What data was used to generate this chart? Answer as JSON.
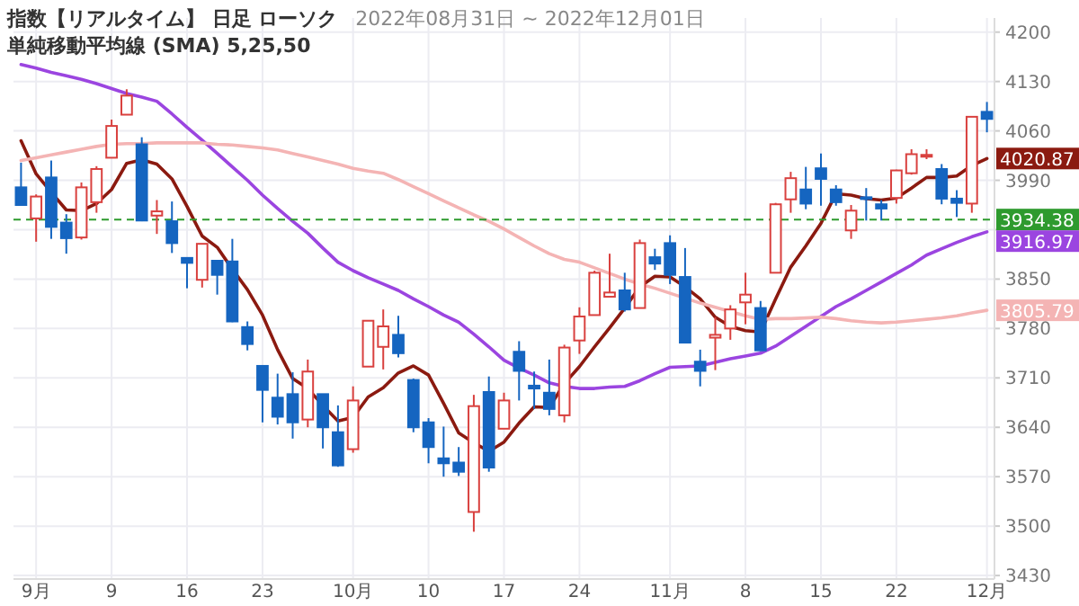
{
  "chart_data": {
    "type": "candlestick",
    "title": "指数【リアルタイム】 日足 ローソク",
    "subtitle": "単純移動平均線 (SMA) 5,25,50",
    "annotations": [
      "2022年08月31日 ~ 2022年12月01日"
    ],
    "categories": [
      null,
      "9月",
      null,
      null,
      null,
      null,
      "9",
      null,
      null,
      null,
      null,
      "16",
      null,
      null,
      null,
      null,
      "23",
      null,
      null,
      null,
      null,
      null,
      "10月",
      null,
      null,
      null,
      null,
      "10",
      null,
      null,
      null,
      null,
      "17",
      null,
      null,
      null,
      null,
      "24",
      null,
      null,
      null,
      null,
      null,
      "11月",
      null,
      null,
      null,
      null,
      "8",
      null,
      null,
      null,
      null,
      "15",
      null,
      null,
      null,
      null,
      "22",
      null,
      null,
      null,
      null,
      null,
      "12月"
    ],
    "ohlc": [
      [
        3980,
        4015,
        3954,
        3955
      ],
      [
        3936,
        3970,
        3903,
        3967
      ],
      [
        3994,
        4018,
        3907,
        3924
      ],
      [
        3930,
        3942,
        3886,
        3908
      ],
      [
        3909,
        3987,
        3906,
        3980
      ],
      [
        3959,
        4010,
        3944,
        4006
      ],
      [
        4022,
        4076,
        4022,
        4067
      ],
      [
        4083,
        4119,
        4083,
        4110
      ],
      [
        4041,
        4051,
        3932,
        3933
      ],
      [
        3940,
        3962,
        3914,
        3946
      ],
      [
        3932,
        3960,
        3887,
        3901
      ],
      [
        3880,
        3880,
        3837,
        3873
      ],
      [
        3849,
        3900,
        3838,
        3900
      ],
      [
        3876,
        3877,
        3828,
        3856
      ],
      [
        3875,
        3907,
        3789,
        3790
      ],
      [
        3782,
        3790,
        3749,
        3758
      ],
      [
        3727,
        3727,
        3647,
        3693
      ],
      [
        3682,
        3716,
        3644,
        3655
      ],
      [
        3687,
        3718,
        3624,
        3647
      ],
      [
        3651,
        3736,
        3640,
        3719
      ],
      [
        3687,
        3687,
        3610,
        3640
      ],
      [
        3633,
        3671,
        3584,
        3586
      ],
      [
        3609,
        3698,
        3604,
        3678
      ],
      [
        3726,
        3791,
        3726,
        3791
      ],
      [
        3754,
        3807,
        3722,
        3783
      ],
      [
        3771,
        3798,
        3739,
        3745
      ],
      [
        3707,
        3709,
        3633,
        3640
      ],
      [
        3647,
        3653,
        3589,
        3612
      ],
      [
        3596,
        3641,
        3570,
        3589
      ],
      [
        3590,
        3612,
        3571,
        3577
      ],
      [
        3520,
        3686,
        3492,
        3670
      ],
      [
        3690,
        3712,
        3577,
        3583
      ],
      [
        3638,
        3689,
        3638,
        3678
      ],
      [
        3747,
        3762,
        3678,
        3720
      ],
      [
        3699,
        3719,
        3666,
        3695
      ],
      [
        3689,
        3736,
        3657,
        3666
      ],
      [
        3657,
        3757,
        3647,
        3753
      ],
      [
        3763,
        3810,
        3744,
        3797
      ],
      [
        3799,
        3862,
        3799,
        3859
      ],
      [
        3825,
        3886,
        3824,
        3831
      ],
      [
        3834,
        3859,
        3804,
        3807
      ],
      [
        3809,
        3906,
        3809,
        3901
      ],
      [
        3881,
        3893,
        3863,
        3872
      ],
      [
        3901,
        3912,
        3843,
        3856
      ],
      [
        3853,
        3894,
        3759,
        3760
      ],
      [
        3733,
        3750,
        3698,
        3720
      ],
      [
        3767,
        3796,
        3721,
        3771
      ],
      [
        3780,
        3813,
        3764,
        3807
      ],
      [
        3817,
        3859,
        3786,
        3828
      ],
      [
        3809,
        3819,
        3748,
        3749
      ],
      [
        3859,
        3958,
        3859,
        3956
      ],
      [
        3963,
        4002,
        3944,
        3993
      ],
      [
        3977,
        4009,
        3949,
        3957
      ],
      [
        4007,
        4028,
        3954,
        3992
      ],
      [
        3977,
        3983,
        3954,
        3959
      ],
      [
        3919,
        3955,
        3907,
        3947
      ],
      [
        3966,
        3979,
        3933,
        3965
      ],
      [
        3956,
        3962,
        3933,
        3950
      ],
      [
        3965,
        4005,
        3957,
        4004
      ],
      [
        4000,
        4034,
        3998,
        4027
      ],
      [
        4024,
        4034,
        4020,
        4026
      ],
      [
        4006,
        4013,
        3956,
        3964
      ],
      [
        3964,
        3976,
        3938,
        3958
      ],
      [
        3957,
        4080,
        3944,
        4080
      ],
      [
        4087,
        4101,
        4058,
        4077
      ]
    ],
    "colors": [
      "#1565c0",
      "#d9413f",
      "#1565c0",
      "#1565c0",
      "#d9413f",
      "#d9413f",
      "#d9413f",
      "#d9413f",
      "#1565c0",
      "#d9413f",
      "#1565c0",
      "#1565c0",
      "#d9413f",
      "#1565c0",
      "#1565c0",
      "#1565c0",
      "#1565c0",
      "#1565c0",
      "#1565c0",
      "#d9413f",
      "#1565c0",
      "#1565c0",
      "#d9413f",
      "#d9413f",
      "#d9413f",
      "#1565c0",
      "#1565c0",
      "#1565c0",
      "#1565c0",
      "#1565c0",
      "#d9413f",
      "#1565c0",
      "#d9413f",
      "#1565c0",
      "#1565c0",
      "#1565c0",
      "#d9413f",
      "#d9413f",
      "#d9413f",
      "#d9413f",
      "#1565c0",
      "#d9413f",
      "#1565c0",
      "#1565c0",
      "#1565c0",
      "#1565c0",
      "#d9413f",
      "#d9413f",
      "#d9413f",
      "#1565c0",
      "#d9413f",
      "#d9413f",
      "#1565c0",
      "#1565c0",
      "#1565c0",
      "#d9413f",
      "#1565c0",
      "#1565c0",
      "#d9413f",
      "#d9413f",
      "#d9413f",
      "#1565c0",
      "#1565c0",
      "#d9413f",
      "#1565c0"
    ],
    "series": [
      {
        "type": "line",
        "color": "#8b1a10",
        "values": [
          4046,
          3999,
          3973,
          3948,
          3947,
          3957,
          3977,
          4014,
          4019,
          4013,
          3992,
          3953,
          3911,
          3895,
          3864,
          3835,
          3799,
          3750,
          3709,
          3695,
          3671,
          3649,
          3654,
          3683,
          3696,
          3717,
          3727,
          3714,
          3674,
          3632,
          3618,
          3606,
          3619,
          3646,
          3669,
          3668,
          3702,
          3726,
          3754,
          3781,
          3809,
          3839,
          3854,
          3853,
          3839,
          3822,
          3796,
          3783,
          3777,
          3775,
          3822,
          3867,
          3897,
          3929,
          3971,
          3969,
          3964,
          3962,
          3965,
          3979,
          3994,
          3994,
          3996,
          4011,
          4020.87
        ],
        "value_labels": [
          null,
          null,
          null,
          null,
          null,
          null,
          null,
          null,
          null,
          null,
          null,
          null,
          null,
          null,
          null,
          null,
          null,
          null,
          null,
          null,
          null,
          null,
          null,
          null,
          null,
          null,
          null,
          null,
          null,
          null,
          null,
          null,
          null,
          null,
          null,
          null,
          null,
          null,
          null,
          null,
          null,
          null,
          null,
          null,
          null,
          null,
          null,
          null,
          null,
          null,
          null,
          null,
          null,
          null,
          null,
          null,
          null,
          null,
          null,
          null,
          null,
          null,
          null,
          null,
          "4020.87"
        ]
      },
      {
        "type": "line",
        "color": "#9b45e0",
        "values": [
          4154,
          4149,
          4143,
          4138,
          4133,
          4127,
          4120,
          4113,
          4108,
          4102,
          4084,
          4065,
          4047,
          4028,
          4009,
          3990,
          3969,
          3950,
          3932,
          3915,
          3894,
          3874,
          3862,
          3852,
          3843,
          3834,
          3822,
          3811,
          3799,
          3789,
          3772,
          3754,
          3735,
          3724,
          3714,
          3703,
          3698,
          3695,
          3695,
          3697,
          3698,
          3706,
          3716,
          3725,
          3726,
          3727,
          3732,
          3737,
          3741,
          3745,
          3755,
          3769,
          3783,
          3797,
          3811,
          3822,
          3834,
          3846,
          3858,
          3870,
          3884,
          3893,
          3902,
          3910,
          3916.97
        ],
        "value_labels": [
          null,
          null,
          null,
          null,
          null,
          null,
          null,
          null,
          null,
          null,
          null,
          null,
          null,
          null,
          null,
          null,
          null,
          null,
          null,
          null,
          null,
          null,
          null,
          null,
          null,
          null,
          null,
          null,
          null,
          null,
          null,
          null,
          null,
          null,
          null,
          null,
          null,
          null,
          null,
          null,
          null,
          null,
          null,
          null,
          null,
          null,
          null,
          null,
          null,
          null,
          null,
          null,
          null,
          null,
          null,
          null,
          null,
          null,
          null,
          null,
          null,
          null,
          null,
          null,
          "3916.97"
        ]
      },
      {
        "type": "line",
        "color": "#f4b4b4",
        "values": [
          4018,
          4022,
          4026,
          4030,
          4034,
          4038,
          4041,
          4042,
          4042,
          4043,
          4043,
          4043,
          4043,
          4041,
          4040,
          4038,
          4036,
          4033,
          4028,
          4023,
          4018,
          4013,
          4007,
          4003,
          4000,
          3991,
          3981,
          3971,
          3961,
          3951,
          3941,
          3932,
          3921,
          3909,
          3897,
          3886,
          3878,
          3874,
          3866,
          3858,
          3850,
          3843,
          3837,
          3830,
          3823,
          3816,
          3810,
          3804,
          3798,
          3793,
          3794,
          3794,
          3795,
          3796,
          3794,
          3791,
          3789,
          3788,
          3789,
          3791,
          3793,
          3795,
          3798,
          3802,
          3805.79
        ],
        "value_labels": [
          null,
          null,
          null,
          null,
          null,
          null,
          null,
          null,
          null,
          null,
          null,
          null,
          null,
          null,
          null,
          null,
          null,
          null,
          null,
          null,
          null,
          null,
          null,
          null,
          null,
          null,
          null,
          null,
          null,
          null,
          null,
          null,
          null,
          null,
          null,
          null,
          null,
          null,
          null,
          null,
          null,
          null,
          null,
          null,
          null,
          null,
          null,
          null,
          null,
          null,
          null,
          null,
          null,
          null,
          null,
          null,
          null,
          null,
          null,
          null,
          null,
          null,
          null,
          null,
          "3805.79"
        ]
      }
    ],
    "ref_lines": [
      {
        "axis": "y",
        "value": 3934.38,
        "label": "3934.38",
        "color": "#2e9a2e",
        "line_style": "dashed"
      }
    ],
    "ylim": [
      3425,
      4220
    ],
    "yticks": [
      3430,
      3500,
      3570,
      3640,
      3710,
      3780,
      3850,
      {
        "value": 3920,
        "label": null
      },
      3990,
      4060,
      4130,
      4200
    ],
    "grid": true
  }
}
